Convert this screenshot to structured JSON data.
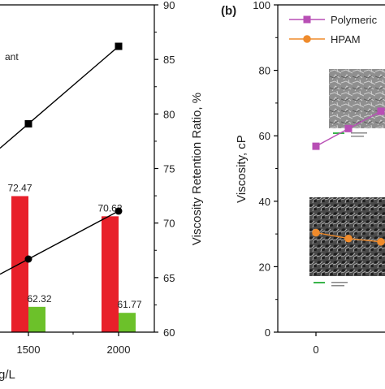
{
  "chart_data": [
    {
      "panel": "",
      "type": "bar+line",
      "xlabel": "g/L",
      "x_ticks": [
        1500,
        2000
      ],
      "y2label": "Viscosity Retention Ratio, %",
      "y2lim": [
        60,
        90
      ],
      "y2_ticks": [
        60,
        65,
        70,
        75,
        80,
        85,
        90
      ],
      "legend_visible_text": "ant",
      "bars": {
        "categories": [
          1500,
          2000
        ],
        "series": [
          {
            "name": "",
            "color": "#e8202a",
            "values": [
              72.47,
              70.62
            ],
            "labels": [
              "72.47",
              "70.62"
            ]
          },
          {
            "name": "",
            "color": "#6cc12a",
            "values": [
              62.32,
              61.77
            ],
            "labels": [
              "62.32",
              "61.77"
            ]
          }
        ]
      },
      "lines": [
        {
          "name": "",
          "marker": "square",
          "color": "#000000",
          "x": [
            1500,
            2000
          ],
          "y": [
            79.1,
            86.2
          ]
        },
        {
          "name": "",
          "marker": "circle",
          "color": "#000000",
          "x": [
            1500,
            2000
          ],
          "y": [
            66.7,
            71.1
          ]
        }
      ]
    },
    {
      "panel": "(b)",
      "type": "line",
      "ylabel": "Viscosity, cP",
      "ylim": [
        0,
        100
      ],
      "y_ticks": [
        0,
        20,
        40,
        60,
        80,
        100
      ],
      "x_ticks": [
        0
      ],
      "legend": [
        "Polymeric",
        "HPAM"
      ],
      "series": [
        {
          "name": "Polymeric",
          "color": "#b84fb5",
          "marker": "square",
          "x": [
            0,
            1,
            2
          ],
          "y": [
            56.8,
            62.2,
            67.5
          ]
        },
        {
          "name": "HPAM",
          "color": "#ef8b2c",
          "marker": "circle",
          "x": [
            0,
            1,
            2
          ],
          "y": [
            30.4,
            28.6,
            27.6
          ]
        }
      ]
    }
  ]
}
